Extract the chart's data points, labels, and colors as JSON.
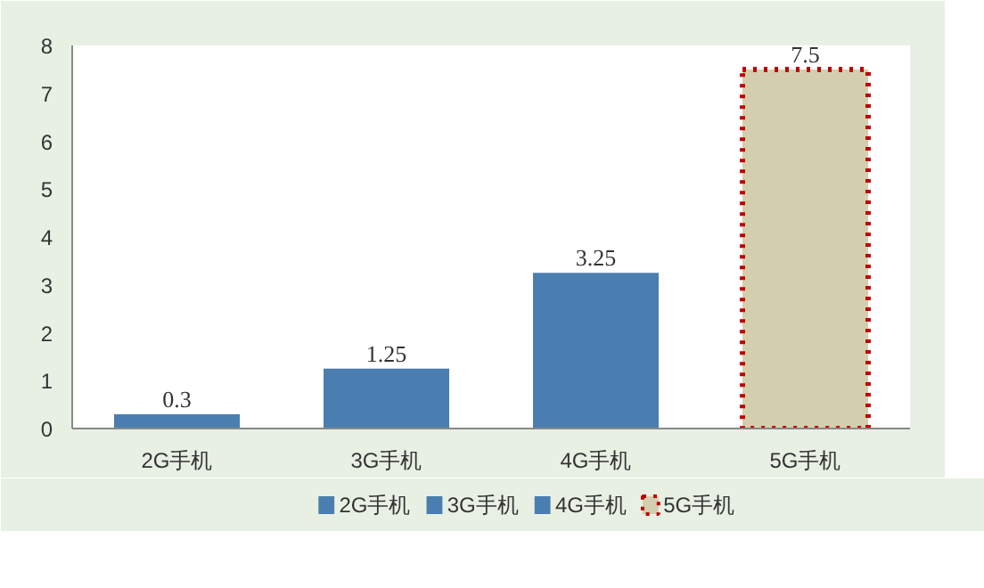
{
  "chart_data": {
    "type": "bar",
    "categories": [
      "2G手机",
      "3G手机",
      "4G手机",
      "5G手机"
    ],
    "series": [
      {
        "name": "2G手机",
        "color": "#4a7eb0",
        "values": [
          0.3,
          null,
          null,
          null
        ]
      },
      {
        "name": "3G手机",
        "color": "#4a7eb0",
        "values": [
          null,
          1.25,
          null,
          null
        ]
      },
      {
        "name": "4G手机",
        "color": "#4a7eb0",
        "values": [
          null,
          null,
          3.25,
          null
        ]
      },
      {
        "name": "5G手机",
        "color": "#d3cfae",
        "line_style": "dotted",
        "values": [
          null,
          null,
          null,
          7.5
        ]
      }
    ],
    "ylim": [
      0,
      8
    ],
    "yticks": [
      0,
      1,
      2,
      3,
      4,
      5,
      6,
      7,
      8
    ],
    "data_labels": true,
    "legend": "bottom",
    "grid": false
  }
}
